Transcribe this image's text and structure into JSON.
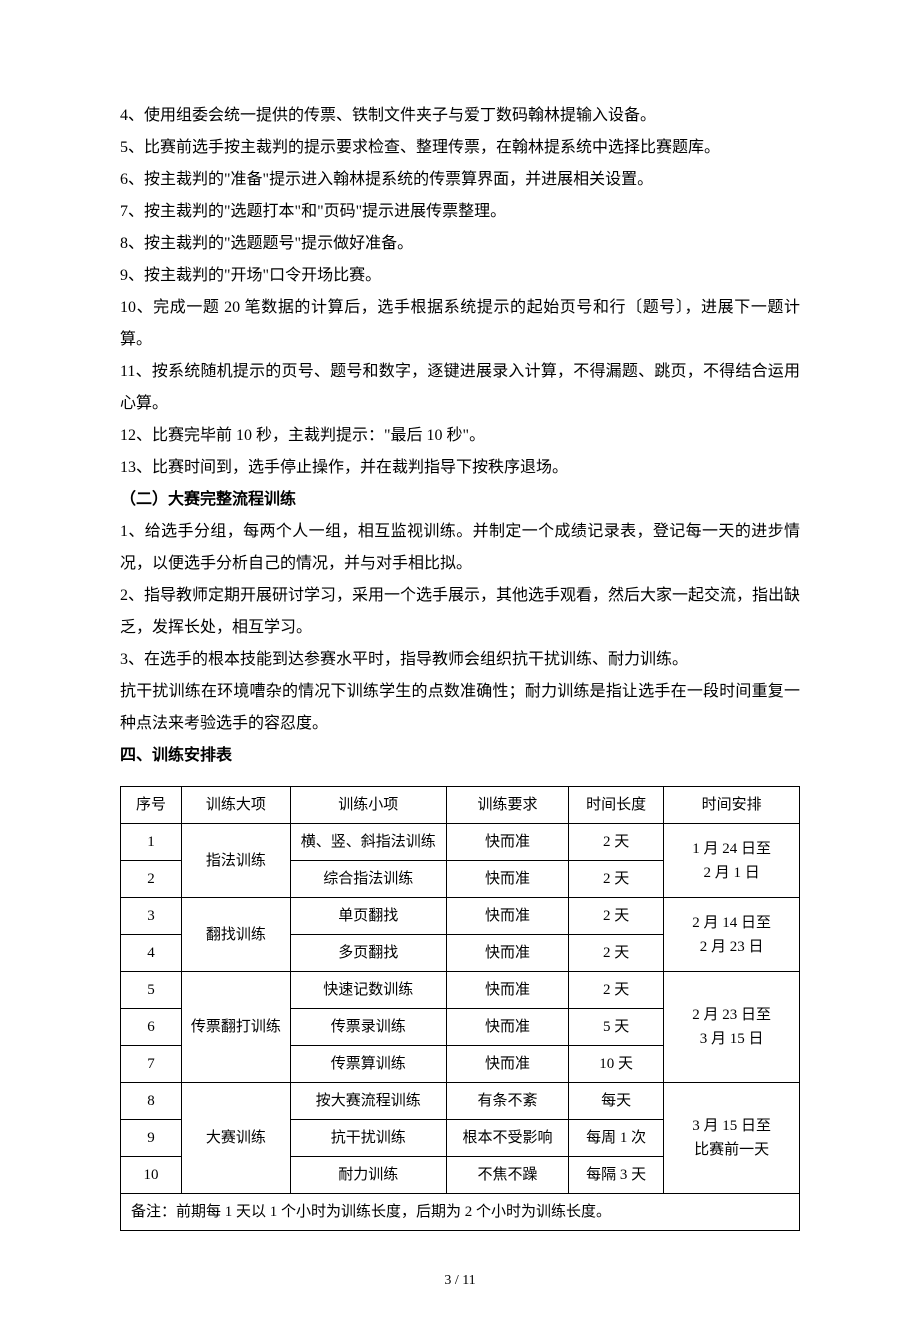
{
  "lines": {
    "l4": "4、使用组委会统一提供的传票、铁制文件夹子与爱丁数码翰林提输入设备。",
    "l5": "5、比赛前选手按主裁判的提示要求检查、整理传票，在翰林提系统中选择比赛题库。",
    "l6": "6、按主裁判的\"准备\"提示进入翰林提系统的传票算界面，并进展相关设置。",
    "l7": "7、按主裁判的\"选题打本\"和\"页码\"提示进展传票整理。",
    "l8": "8、按主裁判的\"选题题号\"提示做好准备。",
    "l9": "9、按主裁判的\"开场\"口令开场比赛。",
    "l10": "10、完成一题 20 笔数据的计算后，选手根据系统提示的起始页号和行〔题号〕，进展下一题计算。",
    "l11": "11、按系统随机提示的页号、题号和数字，逐键进展录入计算，不得漏题、跳页，不得结合运用心算。",
    "l12": "12、比赛完毕前 10 秒，主裁判提示：\"最后 10 秒\"。",
    "l13": "13、比赛时间到，选手停止操作，并在裁判指导下按秩序退场。"
  },
  "section2": {
    "heading": "（二）大赛完整流程训练",
    "p1": "1、给选手分组，每两个人一组，相互监视训练。并制定一个成绩记录表，登记每一天的进步情况，以便选手分析自己的情况，并与对手相比拟。",
    "p2": "2、指导教师定期开展研讨学习，采用一个选手展示，其他选手观看，然后大家一起交流，指出缺乏，发挥长处，相互学习。",
    "p3": "3、在选手的根本技能到达参赛水平时，指导教师会组织抗干扰训练、耐力训练。",
    "p4": "抗干扰训练在环境嘈杂的情况下训练学生的点数准确性；耐力训练是指让选手在一段时间重复一种点法来考验选手的容忍度。"
  },
  "section4_heading": "四、训练安排表",
  "table": {
    "columns": [
      "序号",
      "训练大项",
      "训练小项",
      "训练要求",
      "时间长度",
      "时间安排"
    ],
    "col_widths": [
      "9%",
      "16%",
      "23%",
      "18%",
      "14%",
      "20%"
    ],
    "rows": [
      {
        "no": "1",
        "sub": "横、竖、斜指法训练",
        "req": "快而准",
        "dur": "2 天"
      },
      {
        "no": "2",
        "sub": "综合指法训练",
        "req": "快而准",
        "dur": "2 天"
      },
      {
        "no": "3",
        "sub": "单页翻找",
        "req": "快而准",
        "dur": "2 天"
      },
      {
        "no": "4",
        "sub": "多页翻找",
        "req": "快而准",
        "dur": "2 天"
      },
      {
        "no": "5",
        "sub": "快速记数训练",
        "req": "快而准",
        "dur": "2 天"
      },
      {
        "no": "6",
        "sub": "传票录训练",
        "req": "快而准",
        "dur": "5 天"
      },
      {
        "no": "7",
        "sub": "传票算训练",
        "req": "快而准",
        "dur": "10 天"
      },
      {
        "no": "8",
        "sub": "按大赛流程训练",
        "req": "有条不紊",
        "dur": "每天"
      },
      {
        "no": "9",
        "sub": "抗干扰训练",
        "req": "根本不受影响",
        "dur": "每周 1 次"
      },
      {
        "no": "10",
        "sub": "耐力训练",
        "req": "不焦不躁",
        "dur": "每隔 3 天"
      }
    ],
    "groups": [
      {
        "name": "指法训练",
        "time": "1 月 24 日至\n2 月 1 日",
        "span": 2
      },
      {
        "name": "翻找训练",
        "time": "2 月 14 日至\n2 月 23 日",
        "span": 2
      },
      {
        "name": "传票翻打训练",
        "time": "2 月 23 日至\n3 月 15 日",
        "span": 3
      },
      {
        "name": "大赛训练",
        "time": "3 月 15 日至\n比赛前一天",
        "span": 3
      }
    ],
    "note": "备注：前期每 1 天以 1 个小时为训练长度，后期为 2 个小时为训练长度。"
  },
  "footer": "3 / 11"
}
